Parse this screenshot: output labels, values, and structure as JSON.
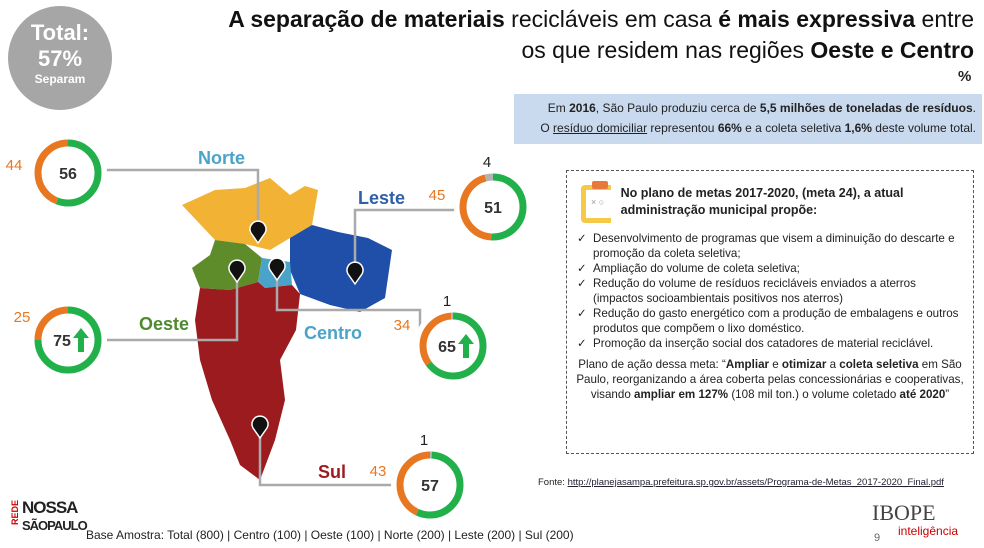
{
  "total": {
    "label": "Total:",
    "value": "57%",
    "sub": "Separam"
  },
  "title": {
    "lines": [
      [
        {
          "text": "A separação de materiais",
          "style": "bold"
        },
        {
          "text": " recicláveis em casa ",
          "style": "normal"
        },
        {
          "text": "é mais expressiva",
          "style": "bold"
        },
        {
          "text": " entre",
          "style": "normal"
        }
      ],
      [
        {
          "text": "os que residem nas regiões ",
          "style": "normal"
        },
        {
          "text": "Oeste e Centro",
          "style": "bold"
        }
      ]
    ]
  },
  "unit": "%",
  "info_box": {
    "lines": [
      [
        {
          "text": "Em ",
          "style": "normal"
        },
        {
          "text": "2016",
          "style": "bold"
        },
        {
          "text": ", São Paulo produziu cerca de ",
          "style": "normal"
        },
        {
          "text": "5,5 milhões de toneladas de resíduos",
          "style": "bold"
        },
        {
          "text": ".",
          "style": "normal"
        }
      ],
      [
        {
          "text": "O ",
          "style": "normal"
        },
        {
          "text": "resíduo domiciliar",
          "style": "underline"
        },
        {
          "text": " representou ",
          "style": "normal"
        },
        {
          "text": "66%",
          "style": "bold"
        },
        {
          "text": " e a coleta seletiva ",
          "style": "normal"
        },
        {
          "text": "1,6%",
          "style": "bold"
        },
        {
          "text": " deste volume total.",
          "style": "normal"
        }
      ]
    ]
  },
  "colors": {
    "separam": "#22b04b",
    "nao_separam": "#e87722",
    "outros": "#b3b3b3"
  },
  "regions": [
    {
      "name": "Norte",
      "label_color": "#4aa3c9",
      "separam": 56,
      "nao_separam": 44,
      "outros": null,
      "arrow": false
    },
    {
      "name": "Leste",
      "label_color": "#2e5fa8",
      "separam": 51,
      "nao_separam": 45,
      "outros": 4,
      "arrow": false
    },
    {
      "name": "Oeste",
      "label_color": "#4e8a2e",
      "separam": 75,
      "nao_separam": 25,
      "outros": null,
      "arrow": true
    },
    {
      "name": "Centro",
      "label_color": "#4aa3c9",
      "separam": 65,
      "nao_separam": 34,
      "outros": 1,
      "arrow": true
    },
    {
      "name": "Sul",
      "label_color": "#9b1b1f",
      "separam": 57,
      "nao_separam": 43,
      "outros": 1,
      "arrow": false
    }
  ],
  "plan": {
    "title": "No plano de metas 2017-2020, (meta 24), a atual administração municipal propõe:",
    "items": [
      "Desenvolvimento de programas que visem a diminuição do descarte e promoção da coleta seletiva;",
      "Ampliação do volume de coleta seletiva;",
      "Redução do volume de resíduos recicláveis enviados a aterros (impactos socioambientais positivos nos aterros)",
      "Redução do gasto energético com a produção de embalagens e outros produtos que compõem o lixo doméstico.",
      "Promoção da inserção social dos catadores de material reciclável."
    ],
    "paragraph": [
      {
        "text": "Plano de ação dessa meta: “",
        "style": "normal"
      },
      {
        "text": "Ampliar",
        "style": "bold"
      },
      {
        "text": " e ",
        "style": "normal"
      },
      {
        "text": "otimizar",
        "style": "bold"
      },
      {
        "text": " a ",
        "style": "normal"
      },
      {
        "text": "coleta seletiva",
        "style": "bold"
      },
      {
        "text": " em São Paulo, reorganizando a área coberta pelas concessionárias e cooperativas, visando ",
        "style": "normal"
      },
      {
        "text": "ampliar em 127%",
        "style": "bold"
      },
      {
        "text": " (108 mil ton.) o volume coletado ",
        "style": "normal"
      },
      {
        "text": "até 2020",
        "style": "bold"
      },
      {
        "text": "”",
        "style": "normal"
      }
    ]
  },
  "source": {
    "label": "Fonte: ",
    "url": "http://planejasampa.prefeitura.sp.gov.br/assets/Programa-de-Metas_2017-2020_Final.pdf"
  },
  "base": "Base Amostra: Total (800) | Centro (100) | Oeste (100) | Norte (200) | Leste (200) | Sul (200)",
  "logo_left": {
    "top": "NOSSA",
    "side": "REDE",
    "bottom": "SÃOPAULO"
  },
  "logo_right": {
    "name": "IBOPE",
    "sub": "inteligência"
  },
  "page": "9"
}
